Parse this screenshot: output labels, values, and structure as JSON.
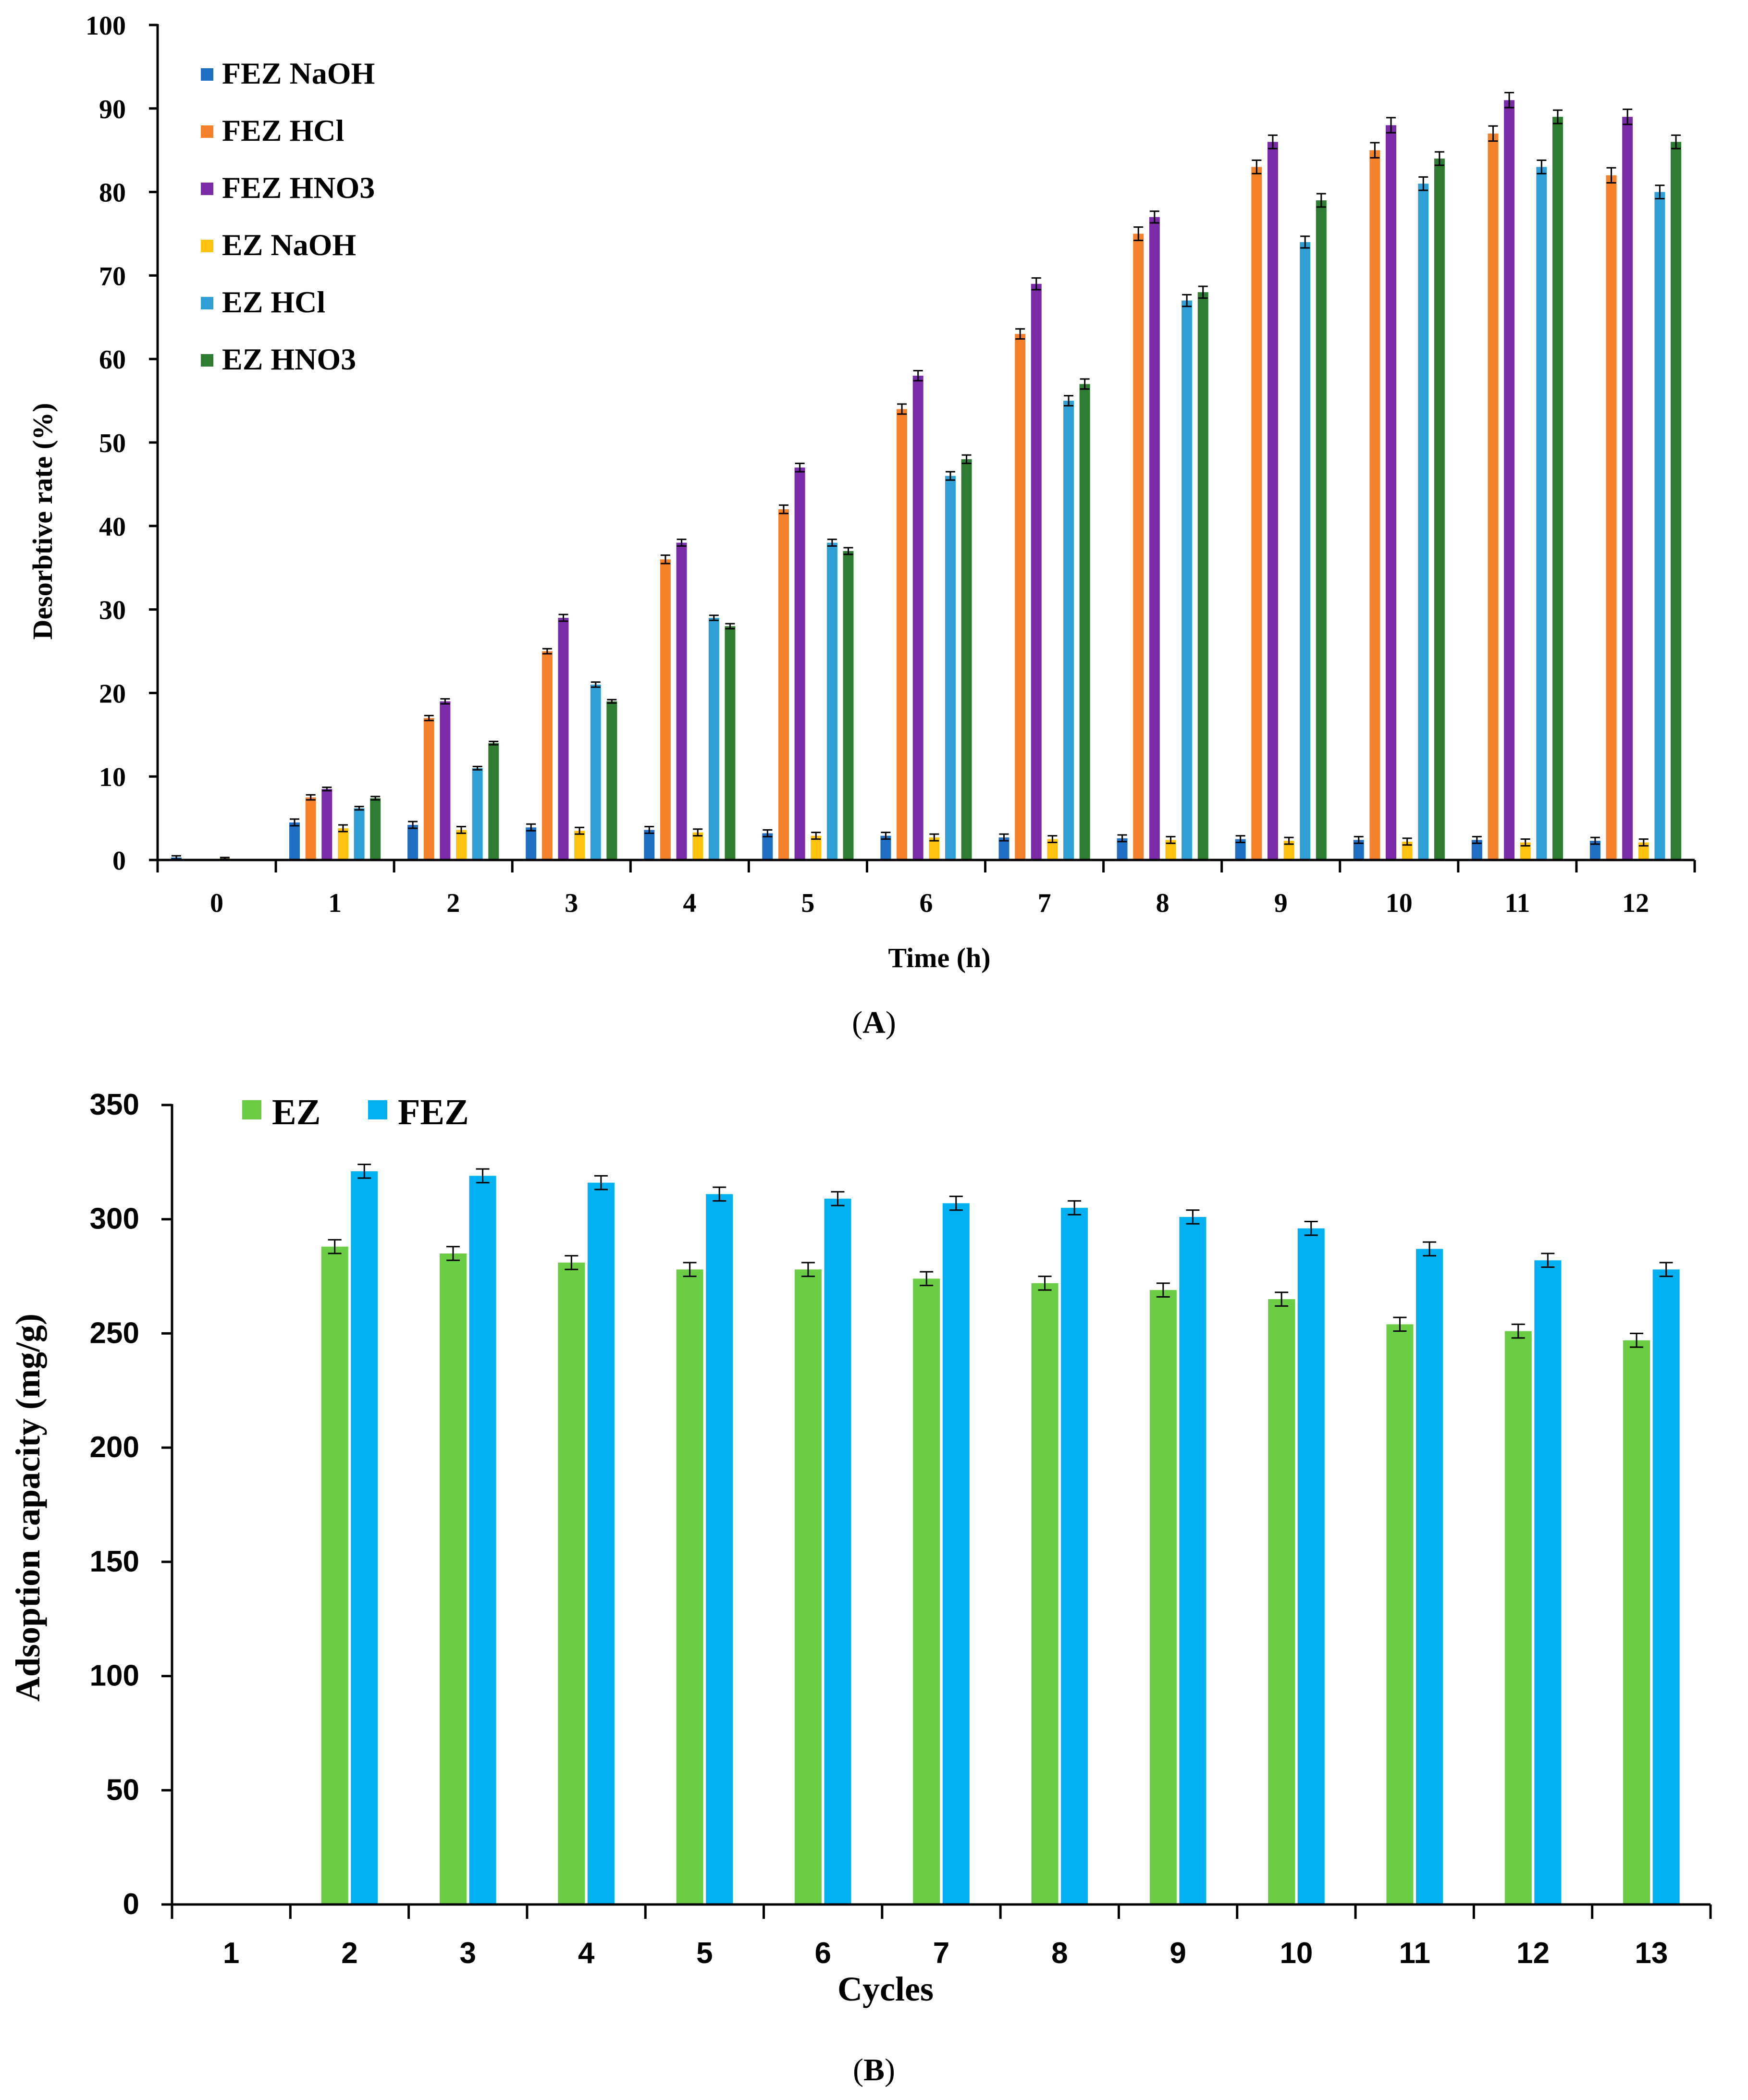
{
  "chart_data": [
    {
      "type": "bar",
      "panel_label": "A",
      "xlabel": "Time (h)",
      "ylabel": "Desorbtive rate (%)",
      "ylim": [
        0,
        100
      ],
      "yticks": [
        0,
        10,
        20,
        30,
        40,
        50,
        60,
        70,
        80,
        90,
        100
      ],
      "categories": [
        "0",
        "1",
        "2",
        "3",
        "4",
        "5",
        "6",
        "7",
        "8",
        "9",
        "10",
        "11",
        "12"
      ],
      "legend_position": "top-left",
      "series": [
        {
          "name": "FEZ NaOH",
          "color": "#1f6fc4",
          "values": [
            0.3,
            4.5,
            4.2,
            3.9,
            3.6,
            3.2,
            2.9,
            2.7,
            2.6,
            2.5,
            2.4,
            2.4,
            2.3
          ],
          "errors": [
            0.2,
            0.4,
            0.4,
            0.4,
            0.4,
            0.4,
            0.4,
            0.4,
            0.4,
            0.4,
            0.4,
            0.4,
            0.4
          ]
        },
        {
          "name": "FEZ HCl",
          "color": "#f5822a",
          "values": [
            0,
            7.5,
            17,
            25,
            36,
            42,
            54,
            63,
            75,
            83,
            85,
            87,
            82
          ],
          "errors": [
            0,
            0.3,
            0.3,
            0.3,
            0.5,
            0.5,
            0.6,
            0.6,
            0.8,
            0.8,
            0.9,
            0.9,
            0.9
          ]
        },
        {
          "name": "FEZ HNO3",
          "color": "#7a2ca8",
          "values": [
            0,
            8.5,
            19,
            29,
            38,
            47,
            58,
            69,
            77,
            86,
            88,
            91,
            89
          ],
          "errors": [
            0,
            0.2,
            0.3,
            0.4,
            0.4,
            0.5,
            0.6,
            0.7,
            0.7,
            0.8,
            0.9,
            0.9,
            0.9
          ]
        },
        {
          "name": "EZ NaOH",
          "color": "#ffc20e",
          "values": [
            0.2,
            3.8,
            3.6,
            3.5,
            3.3,
            2.9,
            2.7,
            2.5,
            2.4,
            2.3,
            2.2,
            2.1,
            2.1
          ],
          "errors": [
            0.1,
            0.4,
            0.4,
            0.4,
            0.4,
            0.4,
            0.4,
            0.4,
            0.4,
            0.4,
            0.4,
            0.4,
            0.4
          ]
        },
        {
          "name": "EZ HCl",
          "color": "#2f9fd6",
          "values": [
            0,
            6.2,
            11,
            21,
            29,
            38,
            46,
            55,
            67,
            74,
            81,
            83,
            80
          ],
          "errors": [
            0,
            0.2,
            0.2,
            0.3,
            0.3,
            0.4,
            0.5,
            0.6,
            0.7,
            0.7,
            0.8,
            0.8,
            0.8
          ]
        },
        {
          "name": "EZ HNO3",
          "color": "#2e7d32",
          "values": [
            0,
            7.4,
            14,
            19,
            28,
            37,
            48,
            57,
            68,
            79,
            84,
            89,
            86
          ],
          "errors": [
            0,
            0.2,
            0.2,
            0.2,
            0.3,
            0.4,
            0.5,
            0.6,
            0.7,
            0.8,
            0.8,
            0.8,
            0.8
          ]
        }
      ]
    },
    {
      "type": "bar",
      "panel_label": "B",
      "xlabel": "Cycles",
      "ylabel": "Adsoption capacity (mg/g)",
      "ylim": [
        0,
        350
      ],
      "yticks": [
        0,
        50,
        100,
        150,
        200,
        250,
        300,
        350
      ],
      "categories": [
        "1",
        "2",
        "3",
        "4",
        "5",
        "6",
        "7",
        "8",
        "9",
        "10",
        "11",
        "12",
        "13"
      ],
      "legend_position": "top-left",
      "series": [
        {
          "name": "EZ",
          "color": "#6acd44",
          "values": [
            0,
            288,
            285,
            281,
            278,
            278,
            274,
            272,
            269,
            265,
            254,
            251,
            247
          ],
          "errors": [
            0,
            3,
            3,
            3,
            3,
            3,
            3,
            3,
            3,
            3,
            3,
            3,
            3
          ]
        },
        {
          "name": "FEZ",
          "color": "#00b0f0",
          "values": [
            0,
            321,
            319,
            316,
            311,
            309,
            307,
            305,
            301,
            296,
            287,
            282,
            278
          ],
          "errors": [
            0,
            3,
            3,
            3,
            3,
            3,
            3,
            3,
            3,
            3,
            3,
            3,
            3
          ]
        }
      ]
    }
  ]
}
